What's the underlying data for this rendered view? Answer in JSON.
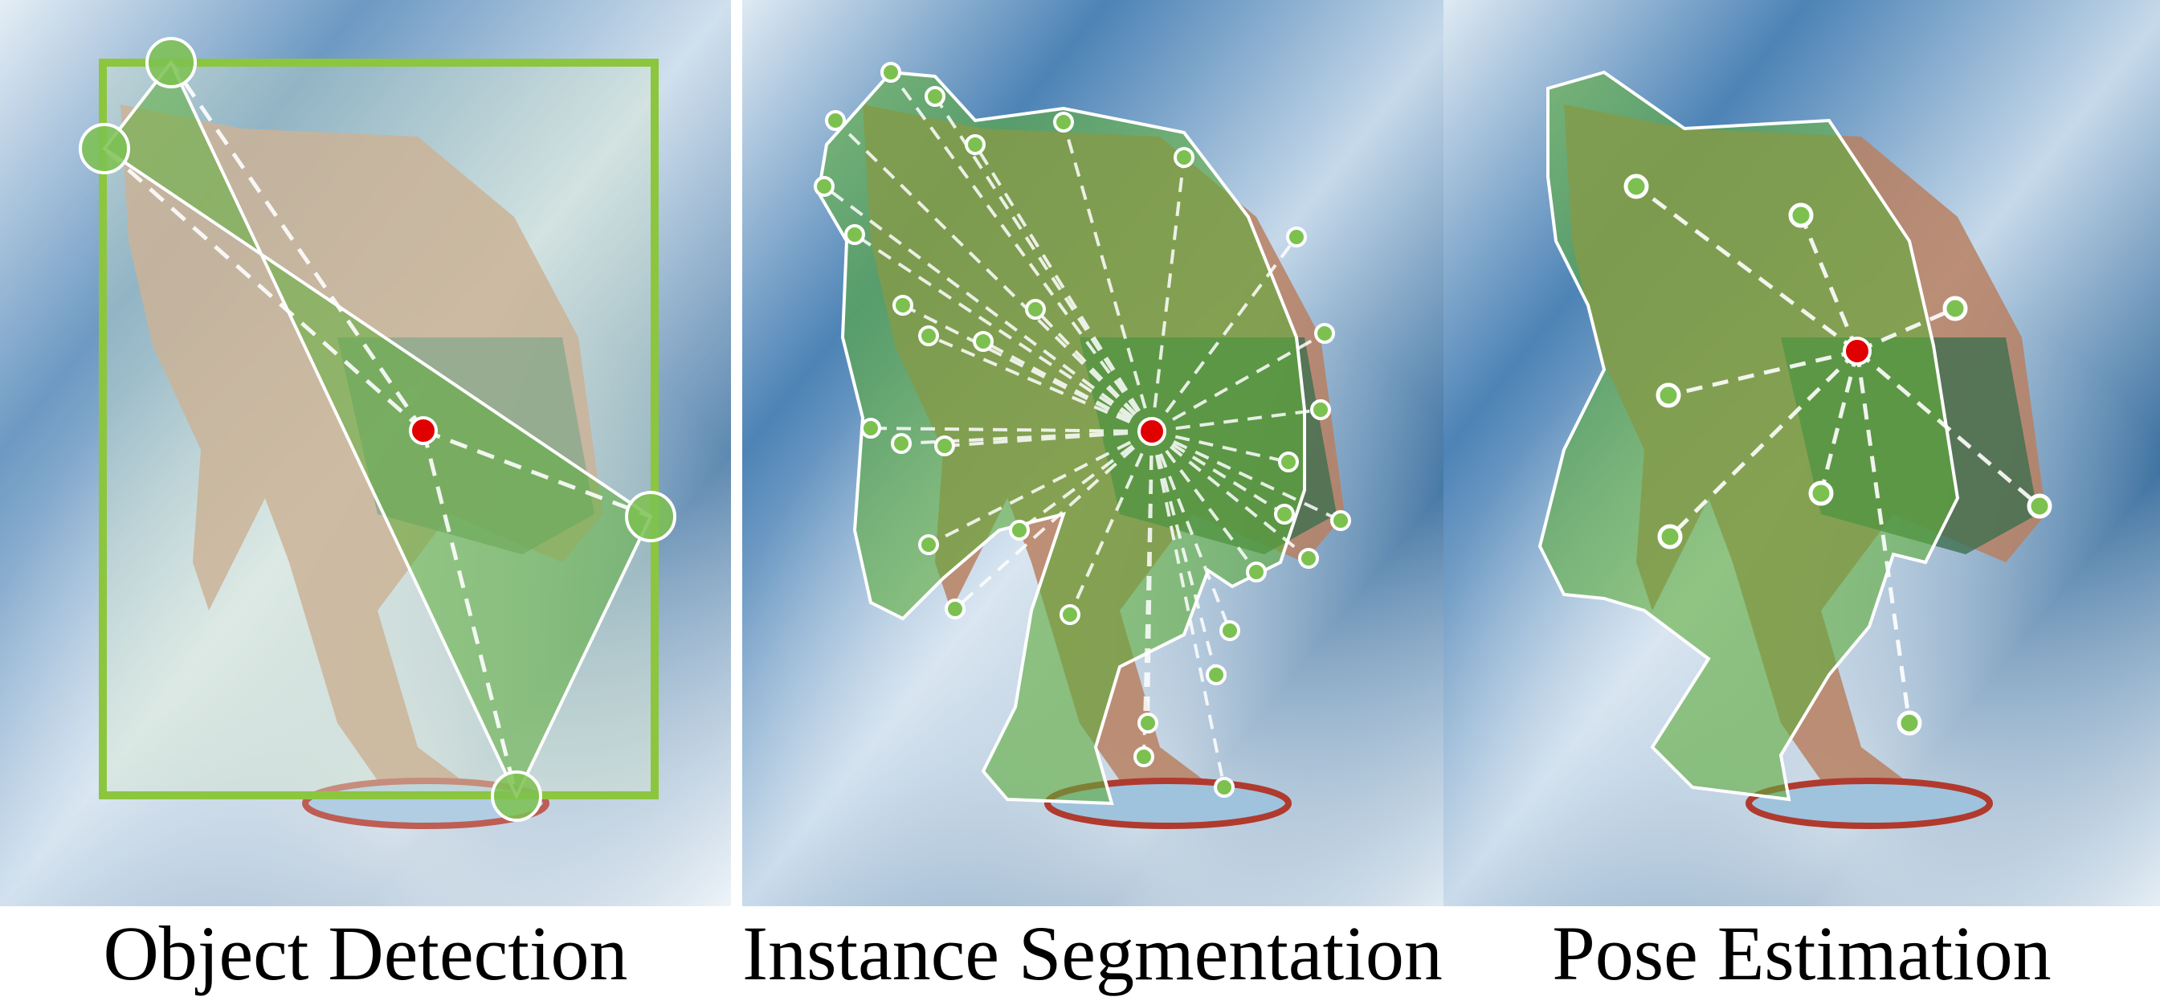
{
  "panels": [
    {
      "id": "object-detection",
      "caption": "Object Detection",
      "shape": "polygon with 4 vertices inside a bounding box, dashed rays from center to vertices"
    },
    {
      "id": "instance-segmentation",
      "caption": "Instance Segmentation",
      "shape": "mask contour with many vertices, dashed rays from center to each contour point"
    },
    {
      "id": "pose-estimation",
      "caption": "Pose Estimation",
      "shape": "body mask with 8 keypoints, dashed rays from center to keypoints"
    }
  ],
  "colors": {
    "mask_fill": "#5fae3a",
    "bbox_stroke": "#8cc63f",
    "keypoint_fill": "#7cc150",
    "center_point": "#e00000",
    "dashed_rays": "#ffffff",
    "water_dark": "#2b5f92",
    "water_light": "#cfe0ee"
  },
  "icons": [
    "center-point-icon",
    "keypoint-icon"
  ]
}
